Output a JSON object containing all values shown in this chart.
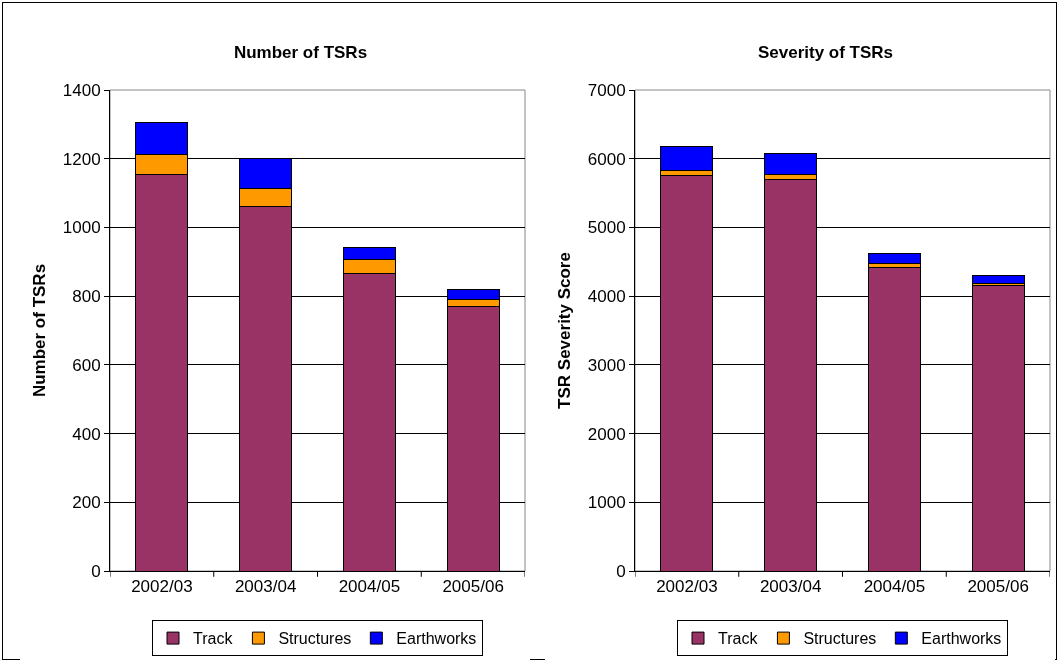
{
  "chart_data": [
    {
      "type": "bar",
      "title": "Number of TSRs",
      "ylabel": "Number of TSRs",
      "stacked": true,
      "categories": [
        "2002/03",
        "2003/04",
        "2004/05",
        "2005/06"
      ],
      "series": [
        {
          "name": "Track",
          "color": "#993366",
          "values": [
            1155,
            1062,
            866,
            770
          ]
        },
        {
          "name": "Structures",
          "color": "#ff9900",
          "values": [
            57,
            52,
            40,
            20
          ]
        },
        {
          "name": "Earthworks",
          "color": "#0000ff",
          "values": [
            93,
            86,
            37,
            30
          ]
        }
      ],
      "ylim": [
        0,
        1400
      ],
      "yticks": [
        0,
        200,
        400,
        600,
        800,
        1000,
        1200,
        1400
      ],
      "grid": "y",
      "legend": "bottom"
    },
    {
      "type": "bar",
      "title": "Severity of TSRs",
      "ylabel": "TSR Severity Score",
      "stacked": true,
      "categories": [
        "2002/03",
        "2003/04",
        "2004/05",
        "2005/06"
      ],
      "series": [
        {
          "name": "Track",
          "color": "#993366",
          "values": [
            5760,
            5700,
            4420,
            4160
          ]
        },
        {
          "name": "Structures",
          "color": "#ff9900",
          "values": [
            75,
            70,
            50,
            30
          ]
        },
        {
          "name": "Earthworks",
          "color": "#0000ff",
          "values": [
            350,
            310,
            150,
            110
          ]
        }
      ],
      "ylim": [
        0,
        7000
      ],
      "yticks": [
        0,
        1000,
        2000,
        3000,
        4000,
        5000,
        6000,
        7000
      ],
      "grid": "y",
      "legend": "bottom"
    }
  ]
}
